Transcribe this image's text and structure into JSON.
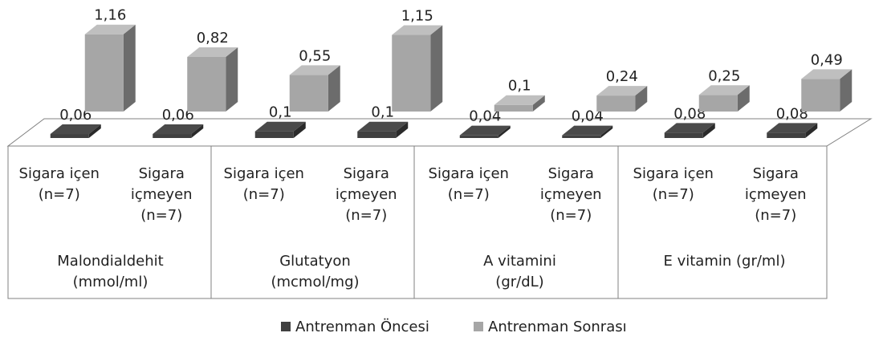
{
  "chart_data": {
    "type": "bar3d",
    "categories": [
      "Sigara içen (n=7)",
      "Sigara içmeyen (n=7)",
      "Sigara içen (n=7)",
      "Sigara içmeyen (n=7)",
      "Sigara içen (n=7)",
      "Sigara içmeyen (n=7)",
      "Sigara içen (n=7)",
      "Sigara içmeyen (n=7)"
    ],
    "groups": [
      "Malondialdehit (mmol/ml)",
      "Glutatyon (mcmol/mg)",
      "A vitamini (gr/dL)",
      "E vitamin (gr/ml)"
    ],
    "series": [
      {
        "name": "Antrenman Öncesi",
        "color": "#404040",
        "values": [
          0.06,
          0.06,
          0.1,
          0.1,
          0.04,
          0.04,
          0.08,
          0.08
        ],
        "value_labels": [
          "0,06",
          "0,06",
          "0,1",
          "0,1",
          "0,04",
          "0,04",
          "0,08",
          "0,08"
        ]
      },
      {
        "name": "Antrenman Sonrası",
        "color": "#a6a6a6",
        "values": [
          1.16,
          0.82,
          0.55,
          1.15,
          0.1,
          0.24,
          0.25,
          0.49
        ],
        "value_labels": [
          "1,16",
          "0,82",
          "0,55",
          "1,15",
          "0,1",
          "0,24",
          "0,25",
          "0,49"
        ]
      }
    ],
    "ylim": [
      0,
      1.2
    ],
    "legend": "bottom"
  }
}
